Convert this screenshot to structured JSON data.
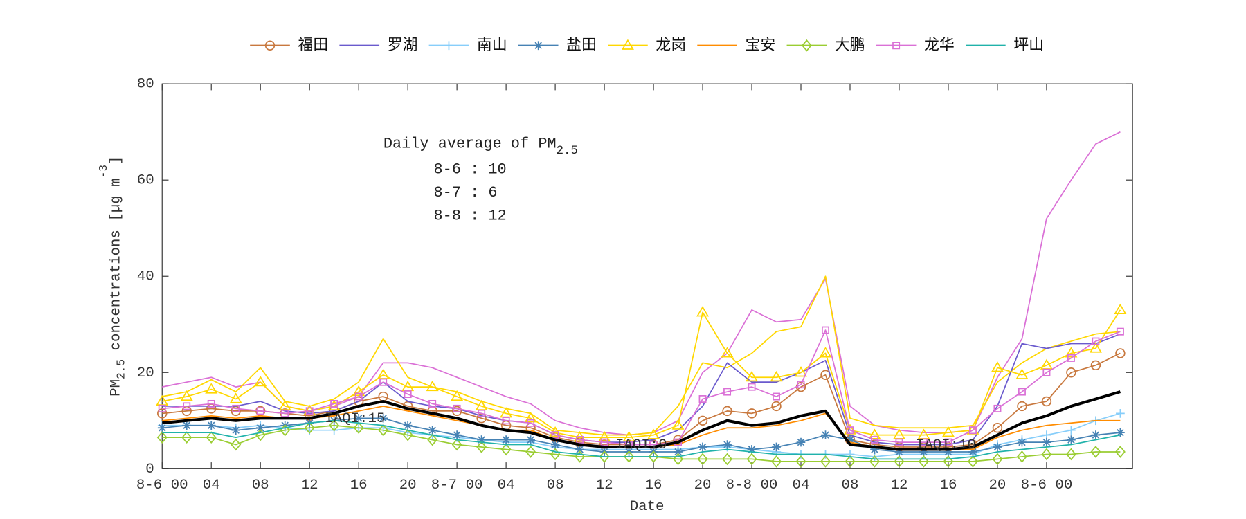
{
  "chart_data": {
    "type": "line",
    "xlabel": "Date",
    "ylabel": [
      {
        "text": "PM"
      },
      {
        "text": "2.5",
        "shift": "sub"
      },
      {
        "text": " concentrations [µg m"
      },
      {
        "text": "-3",
        "shift": "super"
      },
      {
        "text": "]"
      }
    ],
    "note": {
      "head": "Daily average of PM",
      "sub": "2.5",
      "lines": [
        "8-6 : 10",
        "8-7 : 6",
        "8-8 : 12"
      ]
    },
    "annotations": [
      {
        "text": "IAQI:15",
        "x": 15.7,
        "y": 10.5
      },
      {
        "text": "IAQI:9",
        "x": 39,
        "y": 5
      },
      {
        "text": "IAQI:10",
        "x": 63.8,
        "y": 5
      }
    ],
    "xlim": [
      0,
      79
    ],
    "ylim": [
      0,
      80
    ],
    "yticks": [
      0,
      20,
      40,
      60,
      80
    ],
    "xticks": [
      {
        "value": 0,
        "label": "8-6 00"
      },
      {
        "value": 4,
        "label": "04"
      },
      {
        "value": 8,
        "label": "08"
      },
      {
        "value": 12,
        "label": "12"
      },
      {
        "value": 16,
        "label": "16"
      },
      {
        "value": 20,
        "label": "20"
      },
      {
        "value": 24,
        "label": "8-7 00"
      },
      {
        "value": 28,
        "label": "04"
      },
      {
        "value": 32,
        "label": "08"
      },
      {
        "value": 36,
        "label": "12"
      },
      {
        "value": 40,
        "label": "16"
      },
      {
        "value": 44,
        "label": "20"
      },
      {
        "value": 48,
        "label": "8-8 00"
      },
      {
        "value": 52,
        "label": "04"
      },
      {
        "value": 56,
        "label": "08"
      },
      {
        "value": 60,
        "label": "12"
      },
      {
        "value": 64,
        "label": "16"
      },
      {
        "value": 68,
        "label": "20"
      },
      {
        "value": 72,
        "label": "8-6 00"
      }
    ],
    "x": [
      0,
      2,
      4,
      6,
      8,
      10,
      12,
      14,
      16,
      18,
      20,
      22,
      24,
      26,
      28,
      30,
      32,
      34,
      36,
      38,
      40,
      42,
      44,
      46,
      48,
      50,
      52,
      54,
      56,
      58,
      60,
      62,
      64,
      66,
      68,
      70,
      72,
      74,
      76,
      78
    ],
    "series": [
      {
        "color": "#da70d6",
        "marker": "none",
        "width": 1.5,
        "values": [
          17,
          18,
          19,
          17,
          18,
          13,
          12,
          13,
          15,
          22,
          22,
          21,
          19,
          17,
          15,
          13.5,
          10,
          8.5,
          7.5,
          7,
          7.5,
          10,
          20,
          24,
          33,
          30.5,
          31,
          39.5,
          13,
          9,
          8,
          7.5,
          7.5,
          8,
          19,
          27,
          52,
          60,
          67.5,
          70
        ]
      },
      {
        "color": "#ffd700",
        "marker": "none",
        "width": 1.5,
        "values": [
          15,
          16,
          18.5,
          16,
          21,
          14,
          13,
          14.5,
          18,
          27,
          19,
          17,
          16,
          14,
          12.5,
          11.5,
          8,
          7.5,
          7,
          7,
          7.5,
          13,
          22,
          21,
          24,
          28.5,
          29.5,
          40,
          10.5,
          9,
          8.5,
          8.5,
          8.5,
          9,
          18,
          22,
          25,
          26.5,
          28,
          28.5
        ]
      },
      {
        "name": "福田",
        "color": "#c8783e",
        "marker": "circle",
        "width": 1.5,
        "values": [
          11.5,
          12,
          12.5,
          12,
          12,
          11.5,
          11,
          12,
          14,
          15,
          13,
          12,
          12,
          10.5,
          9,
          8.5,
          6.5,
          5.5,
          5,
          5,
          5,
          6,
          10,
          12,
          11.5,
          13,
          17,
          19.5,
          6,
          5,
          4.5,
          4.5,
          4.5,
          5,
          8.5,
          13,
          14,
          20,
          21.5,
          24
        ]
      },
      {
        "name": "罗湖",
        "color": "#6a5acd",
        "marker": "none",
        "width": 1.5,
        "values": [
          13,
          13,
          13,
          13,
          14,
          12,
          11.5,
          12,
          14,
          18,
          14,
          13,
          12.5,
          11,
          10,
          9.5,
          7,
          6,
          5.5,
          5.5,
          6,
          8,
          13,
          22,
          18,
          18,
          20,
          22.5,
          7,
          5.5,
          5,
          5,
          5,
          6,
          13,
          26,
          25,
          26,
          26,
          28
        ]
      },
      {
        "name": "南山",
        "color": "#87cefa",
        "marker": "plus",
        "width": 1.5,
        "values": [
          9,
          9,
          9,
          8.5,
          9,
          8.5,
          8,
          8,
          8.5,
          8.5,
          7.5,
          7,
          6.5,
          6,
          5.5,
          5.5,
          4.5,
          4,
          4,
          4,
          4,
          4,
          4.5,
          4.5,
          4,
          3.5,
          3,
          3,
          3,
          2.5,
          3,
          3,
          3,
          3,
          5,
          6,
          7,
          8,
          10,
          11.5
        ]
      },
      {
        "name": "盐田",
        "color": "#4682b4",
        "marker": "star",
        "width": 1.5,
        "values": [
          8.5,
          9,
          9,
          8,
          8.5,
          9,
          9.5,
          10,
          10.5,
          10.5,
          9,
          8,
          7,
          6,
          6,
          6,
          5,
          4,
          3.5,
          3.5,
          3.5,
          3.5,
          4.5,
          5,
          4,
          4.5,
          5.5,
          7,
          6,
          4,
          3.5,
          3.5,
          3.5,
          3.5,
          4.5,
          5.5,
          5.5,
          6,
          7,
          7.5
        ]
      },
      {
        "name": "龙岗",
        "color": "#ffd700",
        "marker": "triangle",
        "width": 1.5,
        "values": [
          14,
          15,
          16.5,
          14.5,
          18,
          13,
          12,
          13,
          16,
          19.5,
          17,
          17,
          15,
          13,
          11.5,
          10.5,
          7.5,
          6.5,
          6.5,
          6.5,
          7,
          9,
          32.5,
          24,
          19,
          19,
          20,
          24,
          8,
          7,
          7,
          7,
          7.5,
          8,
          21,
          19.5,
          21.5,
          24,
          25,
          33
        ]
      },
      {
        "name": "宝安",
        "color": "#ff8c00",
        "marker": "none",
        "width": 1.5,
        "values": [
          10,
          10.5,
          11,
          10.5,
          11,
          10.5,
          10.5,
          11,
          12,
          13,
          12,
          11,
          10,
          9,
          8,
          8,
          6,
          5,
          4.5,
          4.5,
          4.5,
          5,
          7,
          8.5,
          8.5,
          9,
          10,
          11.5,
          5.5,
          4.5,
          4,
          4,
          4,
          4,
          6.5,
          8,
          9,
          9.5,
          10,
          10
        ]
      },
      {
        "name": "大鹏",
        "color": "#9acd32",
        "marker": "diamond",
        "width": 1.5,
        "values": [
          6.5,
          6.5,
          6.5,
          5,
          7,
          8,
          8.5,
          9,
          8.5,
          8,
          7,
          6,
          5,
          4.5,
          4,
          3.5,
          3,
          2.5,
          2.5,
          2.5,
          2.5,
          2,
          2,
          2,
          2,
          1.5,
          1.5,
          1.5,
          1.5,
          1.5,
          1.5,
          1.5,
          1.5,
          1.5,
          2,
          2.5,
          3,
          3,
          3.5,
          3.5
        ]
      },
      {
        "name": "龙华",
        "color": "#da70d6",
        "marker": "square",
        "width": 1.5,
        "values": [
          12.5,
          13,
          13.5,
          12.5,
          12,
          11.5,
          12,
          13.5,
          15,
          18,
          15.5,
          13.5,
          12.5,
          11.5,
          10,
          9.5,
          7,
          6,
          5.5,
          5,
          5,
          5.5,
          14.5,
          16,
          17,
          15,
          17.5,
          28.8,
          8,
          6,
          5.5,
          5.5,
          5.5,
          8,
          12.5,
          16,
          20,
          23,
          26.5,
          28.5
        ]
      },
      {
        "name": "坪山",
        "color": "#20b2aa",
        "marker": "none",
        "width": 1.5,
        "values": [
          7.5,
          7.5,
          7.5,
          6.5,
          7.5,
          8.5,
          9.5,
          10,
          9.5,
          9,
          8,
          7,
          6,
          5.5,
          5,
          5,
          3.5,
          3,
          2.5,
          2.5,
          2.5,
          2.5,
          3.5,
          4,
          3.5,
          3,
          3,
          3,
          2.5,
          2,
          2,
          2,
          2,
          2.5,
          3.5,
          4,
          4.5,
          5,
          6,
          7
        ]
      },
      {
        "color": "#000000",
        "marker": "none",
        "width": 3.5,
        "values": [
          9.5,
          10,
          10.5,
          10,
          10.5,
          10.5,
          10.5,
          11.5,
          13,
          14,
          12.5,
          11.5,
          10.5,
          9,
          8,
          7.5,
          6,
          5,
          4.5,
          4.5,
          4.5,
          5.5,
          8,
          10,
          9,
          9.5,
          11,
          12,
          5,
          4.5,
          4,
          4,
          4,
          4.5,
          7,
          9.5,
          11,
          13,
          14.5,
          16
        ]
      }
    ]
  }
}
